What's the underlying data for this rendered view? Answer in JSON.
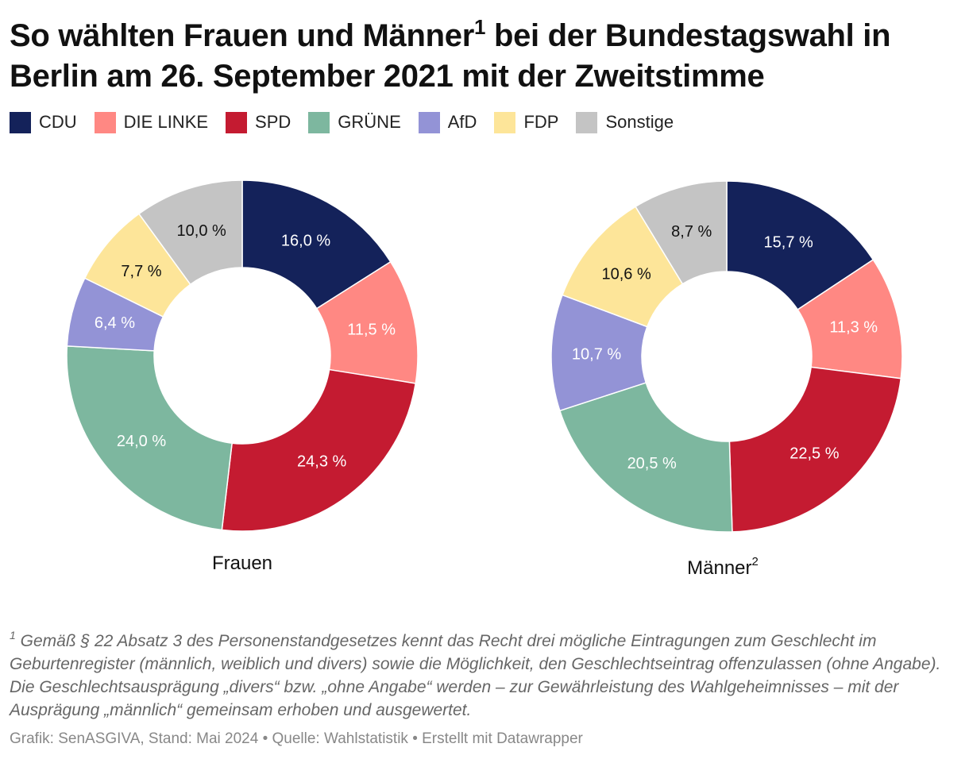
{
  "title": {
    "part1": "So wählten Frauen und Männer",
    "sup": "1",
    "part2": " bei der Bundestagswahl in Berlin am 26. September 2021 mit der Zweitstimme"
  },
  "legend": [
    {
      "name": "CDU",
      "color": "#14225a"
    },
    {
      "name": "DIE LINKE",
      "color": "#ff8883"
    },
    {
      "name": "SPD",
      "color": "#c41b31"
    },
    {
      "name": "GRÜNE",
      "color": "#7db79f"
    },
    {
      "name": "AfD",
      "color": "#9393d6"
    },
    {
      "name": "FDP",
      "color": "#fde599"
    },
    {
      "name": "Sonstige",
      "color": "#c4c4c4"
    }
  ],
  "chart_data": [
    {
      "type": "pie",
      "title": "Frauen",
      "title_sup": "",
      "categories": [
        "CDU",
        "DIE LINKE",
        "SPD",
        "GRÜNE",
        "AfD",
        "FDP",
        "Sonstige"
      ],
      "values": [
        16.0,
        11.5,
        24.3,
        24.0,
        6.4,
        7.7,
        10.0
      ],
      "labels": [
        "16,0 %",
        "11,5 %",
        "24,3 %",
        "24,0 %",
        "6,4 %",
        "7,7 %",
        "10,0 %"
      ],
      "donut": true,
      "start": "top, clockwise"
    },
    {
      "type": "pie",
      "title": "Männer",
      "title_sup": "2",
      "categories": [
        "CDU",
        "DIE LINKE",
        "SPD",
        "GRÜNE",
        "AfD",
        "FDP",
        "Sonstige"
      ],
      "values": [
        15.7,
        11.3,
        22.5,
        20.5,
        10.7,
        10.6,
        8.7
      ],
      "labels": [
        "15,7 %",
        "11,3 %",
        "22,5 %",
        "20,5 %",
        "10,7 %",
        "10,6 %",
        "8,7 %"
      ],
      "donut": true,
      "start": "top, clockwise"
    }
  ],
  "label_colors": [
    "#ffffff",
    "#ffffff",
    "#ffffff",
    "#ffffff",
    "#ffffff",
    "#111111",
    "#111111"
  ],
  "footnote": {
    "sup": "1",
    "text": " Gemäß § 22 Absatz 3 des Personenstandgesetzes kennt das Recht drei mögliche Eintragungen zum Geschlecht im Geburtenregister (männlich, weiblich und divers) sowie die Möglichkeit, den Geschlechtseintrag offenzulassen (ohne Angabe). Die Geschlechtsausprägung „divers“ bzw. „ohne Angabe“ werden – zur Gewährleistung des Wahlgeheimnisses – mit der Ausprägung „männlich“ gemeinsam erhoben und ausgewertet."
  },
  "source": "Grafik: SenASGIVA, Stand: Mai 2024 • Quelle: Wahlstatistik • Erstellt mit Datawrapper"
}
